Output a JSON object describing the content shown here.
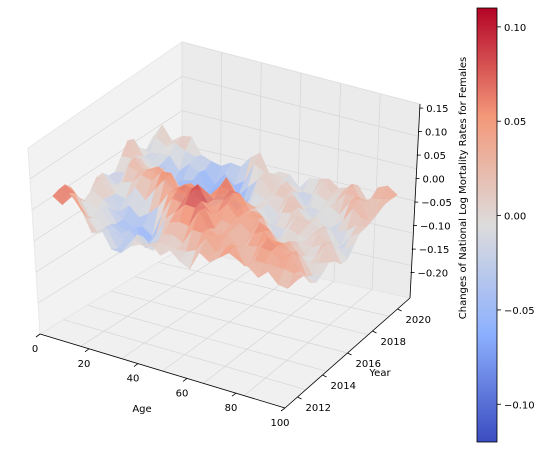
{
  "chart_data": {
    "type": "surface3d",
    "colormap": "coolwarm",
    "x_axis": {
      "label": "Age",
      "ticks": [
        0,
        20,
        40,
        60,
        80,
        100
      ],
      "range": [
        0,
        100
      ]
    },
    "y_axis": {
      "label": "Year",
      "ticks": [
        2012,
        2014,
        2016,
        2018,
        2020
      ],
      "range": [
        2011,
        2021
      ]
    },
    "z_axis": {
      "label": "Changes of National Log Mortality Rates for Females",
      "ticks": [
        -0.2,
        -0.15,
        -0.1,
        -0.05,
        0.0,
        0.05,
        0.1,
        0.15
      ],
      "tick_labels": [
        "−0.20",
        "−0.15",
        "−0.10",
        "−0.05",
        "0.00",
        "0.05",
        "0.10",
        "0.15"
      ],
      "range": [
        -0.22,
        0.18
      ]
    },
    "colorbar": {
      "range": [
        -0.12,
        0.11
      ],
      "ticks": [
        -0.1,
        -0.05,
        0.0,
        0.05,
        0.1
      ],
      "tick_labels": [
        "−0.10",
        "−0.05",
        "0.00",
        "0.05",
        "0.10"
      ]
    },
    "grid": true,
    "surface_samples": [
      {
        "age": 0,
        "year": 2012,
        "value": 0.06
      },
      {
        "age": 5,
        "year": 2012,
        "value": 0.09
      },
      {
        "age": 10,
        "year": 2013,
        "value": 0.08
      },
      {
        "age": 15,
        "year": 2013,
        "value": -0.06
      },
      {
        "age": 20,
        "year": 2014,
        "value": -0.11
      },
      {
        "age": 25,
        "year": 2016,
        "value": 0.07
      },
      {
        "age": 30,
        "year": 2018,
        "value": -0.09
      },
      {
        "age": 45,
        "year": 2015,
        "value": 0.1
      },
      {
        "age": 60,
        "year": 2014,
        "value": 0.05
      },
      {
        "age": 80,
        "year": 2013,
        "value": 0.06
      },
      {
        "age": 100,
        "year": 2020,
        "value": 0.05
      }
    ]
  }
}
